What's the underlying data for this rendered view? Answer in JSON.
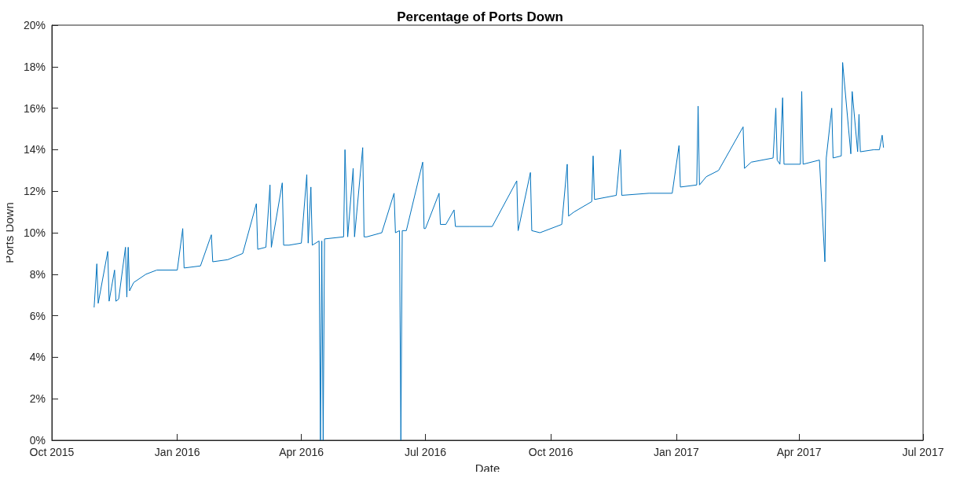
{
  "chart_data": {
    "type": "line",
    "title": "Percentage of Ports Down",
    "xlabel": "Date",
    "ylabel": "Ports Down",
    "x": [
      "2015-11-01",
      "2015-11-03",
      "2015-11-04",
      "2015-11-11",
      "2015-11-12",
      "2015-11-16",
      "2015-11-17",
      "2015-11-19",
      "2015-11-24",
      "2015-11-25",
      "2015-11-26",
      "2015-11-27",
      "2015-11-30",
      "2015-12-09",
      "2015-12-17",
      "2016-01-01",
      "2016-01-05",
      "2016-01-06",
      "2016-01-18",
      "2016-01-26",
      "2016-01-27",
      "2016-02-07",
      "2016-02-18",
      "2016-02-28",
      "2016-02-29",
      "2016-03-06",
      "2016-03-09",
      "2016-03-10",
      "2016-03-18",
      "2016-03-19",
      "2016-03-23",
      "2016-04-01",
      "2016-04-05",
      "2016-04-06",
      "2016-04-08",
      "2016-04-09",
      "2016-04-14",
      "2016-04-15",
      "2016-04-16",
      "2016-04-17",
      "2016-04-18",
      "2016-05-02",
      "2016-05-03",
      "2016-05-05",
      "2016-05-09",
      "2016-05-10",
      "2016-05-16",
      "2016-05-17",
      "2016-05-19",
      "2016-05-30",
      "2016-06-08",
      "2016-06-09",
      "2016-06-12",
      "2016-06-13",
      "2016-06-14",
      "2016-06-17",
      "2016-06-29",
      "2016-06-30",
      "2016-07-01",
      "2016-07-11",
      "2016-07-12",
      "2016-07-16",
      "2016-07-22",
      "2016-07-23",
      "2016-08-02",
      "2016-08-19",
      "2016-09-06",
      "2016-09-07",
      "2016-09-16",
      "2016-09-17",
      "2016-09-23",
      "2016-10-09",
      "2016-10-13",
      "2016-10-14",
      "2016-10-18",
      "2016-10-31",
      "2016-11-01",
      "2016-11-02",
      "2016-11-18",
      "2016-11-21",
      "2016-11-22",
      "2016-12-12",
      "2016-12-29",
      "2017-01-03",
      "2017-01-04",
      "2017-01-16",
      "2017-01-17",
      "2017-01-18",
      "2017-01-23",
      "2017-02-01",
      "2017-02-19",
      "2017-02-20",
      "2017-02-25",
      "2017-03-13",
      "2017-03-15",
      "2017-03-16",
      "2017-03-18",
      "2017-03-20",
      "2017-03-21",
      "2017-04-02",
      "2017-04-03",
      "2017-04-04",
      "2017-04-16",
      "2017-04-20",
      "2017-04-21",
      "2017-04-25",
      "2017-04-26",
      "2017-05-02",
      "2017-05-03",
      "2017-05-09",
      "2017-05-10",
      "2017-05-14",
      "2017-05-15",
      "2017-05-16",
      "2017-05-26",
      "2017-05-30",
      "2017-06-01",
      "2017-06-02"
    ],
    "values": [
      6.4,
      8.5,
      6.6,
      9.1,
      6.7,
      8.2,
      6.7,
      6.8,
      9.3,
      6.9,
      9.3,
      7.2,
      7.6,
      8.0,
      8.2,
      8.2,
      10.2,
      8.3,
      8.4,
      9.9,
      8.6,
      8.7,
      9.0,
      11.4,
      9.2,
      9.3,
      12.3,
      9.3,
      12.4,
      9.4,
      9.4,
      9.5,
      12.8,
      9.5,
      12.2,
      9.4,
      9.6,
      0,
      9.6,
      0,
      9.7,
      9.8,
      14.0,
      9.8,
      13.1,
      9.8,
      14.1,
      9.8,
      9.8,
      10.0,
      11.9,
      10.0,
      10.1,
      0,
      10.1,
      10.1,
      13.4,
      10.2,
      10.2,
      11.9,
      10.4,
      10.4,
      11.1,
      10.3,
      10.3,
      10.3,
      12.5,
      10.1,
      12.9,
      10.1,
      10.0,
      10.4,
      13.3,
      10.8,
      11.0,
      11.5,
      13.7,
      11.6,
      11.8,
      14.0,
      11.8,
      11.9,
      11.9,
      14.2,
      12.2,
      12.3,
      16.1,
      12.3,
      12.7,
      13.0,
      15.1,
      13.1,
      13.4,
      13.6,
      16.0,
      13.5,
      13.3,
      16.5,
      13.3,
      13.3,
      16.8,
      13.3,
      13.5,
      8.6,
      13.6,
      16.0,
      13.6,
      13.7,
      18.2,
      13.8,
      16.8,
      13.9,
      15.7,
      13.9,
      14.0,
      14.0,
      14.7,
      14.1
    ],
    "color": "#0072bd",
    "line_style": "solid",
    "marker": "none",
    "xlim": [
      "2015-10-01",
      "2017-07-01"
    ],
    "xticks": [
      {
        "value": "2015-10-01",
        "label": "Oct 2015"
      },
      {
        "value": "2016-01-01",
        "label": "Jan 2016"
      },
      {
        "value": "2016-04-01",
        "label": "Apr 2016"
      },
      {
        "value": "2016-07-01",
        "label": "Jul 2016"
      },
      {
        "value": "2016-10-01",
        "label": "Oct 2016"
      },
      {
        "value": "2017-01-01",
        "label": "Jan 2017"
      },
      {
        "value": "2017-04-01",
        "label": "Apr 2017"
      },
      {
        "value": "2017-07-01",
        "label": "Jul 2017"
      }
    ],
    "ylim": [
      0,
      20
    ],
    "yticks": [
      {
        "value": 0,
        "label": "0%"
      },
      {
        "value": 2,
        "label": "2%"
      },
      {
        "value": 4,
        "label": "4%"
      },
      {
        "value": 6,
        "label": "6%"
      },
      {
        "value": 8,
        "label": "8%"
      },
      {
        "value": 10,
        "label": "10%"
      },
      {
        "value": 12,
        "label": "12%"
      },
      {
        "value": 14,
        "label": "14%"
      },
      {
        "value": 16,
        "label": "16%"
      },
      {
        "value": 18,
        "label": "18%"
      },
      {
        "value": 20,
        "label": "20%"
      }
    ],
    "grid": false
  }
}
